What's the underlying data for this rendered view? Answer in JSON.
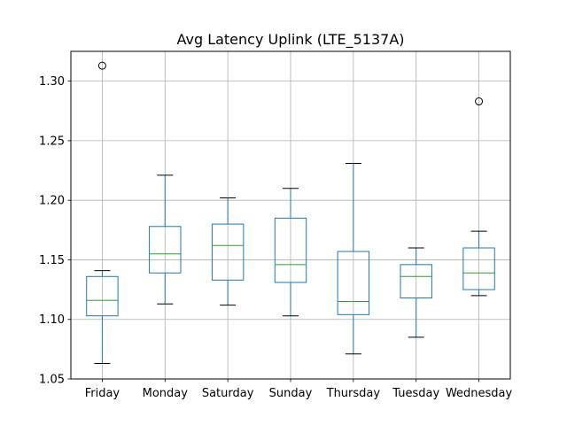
{
  "chart_data": {
    "type": "box",
    "title": "Avg Latency Uplink (LTE_5137A)",
    "xlabel": "",
    "ylabel": "",
    "ylim": [
      1.05,
      1.325
    ],
    "yticks": [
      1.05,
      1.1,
      1.15,
      1.2,
      1.25,
      1.3
    ],
    "ytick_labels": [
      "1.05",
      "1.10",
      "1.15",
      "1.20",
      "1.25",
      "1.30"
    ],
    "grid": true,
    "categories": [
      "Friday",
      "Monday",
      "Saturday",
      "Sunday",
      "Thursday",
      "Tuesday",
      "Wednesday"
    ],
    "boxes": [
      {
        "name": "Friday",
        "whisker_low": 1.063,
        "q1": 1.103,
        "median": 1.116,
        "q3": 1.136,
        "whisker_high": 1.141,
        "outliers": [
          1.313
        ]
      },
      {
        "name": "Monday",
        "whisker_low": 1.113,
        "q1": 1.139,
        "median": 1.155,
        "q3": 1.178,
        "whisker_high": 1.221,
        "outliers": []
      },
      {
        "name": "Saturday",
        "whisker_low": 1.112,
        "q1": 1.133,
        "median": 1.162,
        "q3": 1.18,
        "whisker_high": 1.202,
        "outliers": []
      },
      {
        "name": "Sunday",
        "whisker_low": 1.103,
        "q1": 1.131,
        "median": 1.146,
        "q3": 1.185,
        "whisker_high": 1.21,
        "outliers": []
      },
      {
        "name": "Thursday",
        "whisker_low": 1.071,
        "q1": 1.104,
        "median": 1.115,
        "q3": 1.157,
        "whisker_high": 1.231,
        "outliers": []
      },
      {
        "name": "Tuesday",
        "whisker_low": 1.085,
        "q1": 1.118,
        "median": 1.136,
        "q3": 1.146,
        "whisker_high": 1.16,
        "outliers": []
      },
      {
        "name": "Wednesday",
        "whisker_low": 1.12,
        "q1": 1.125,
        "median": 1.139,
        "q3": 1.16,
        "whisker_high": 1.174,
        "outliers": [
          1.283
        ]
      }
    ],
    "colors": {
      "box": "#1f77b4",
      "median": "#2ca02c",
      "whisker": "#1f77b4",
      "cap": "#000000",
      "outlier": "#000000",
      "grid": "#b0b0b0",
      "axes": "#000000"
    }
  }
}
